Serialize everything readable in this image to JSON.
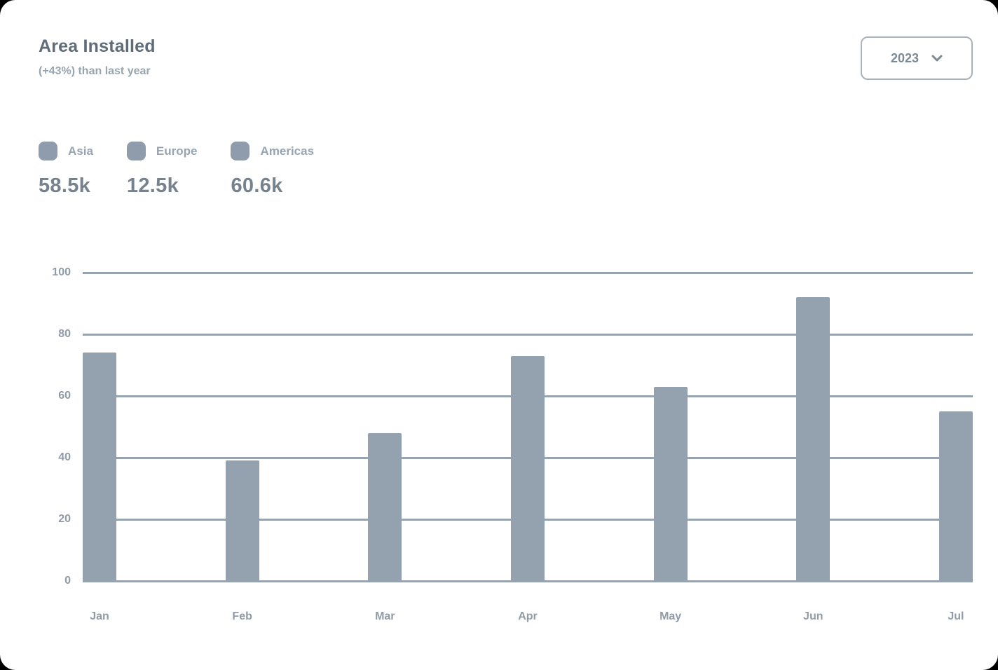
{
  "card": {
    "title": "Area Installed",
    "subtitle": "(+43%) than last year",
    "year_selector": {
      "value": "2023",
      "icon": "chevron-down-icon"
    }
  },
  "legend": {
    "items": [
      {
        "label": "Asia",
        "value": "58.5k",
        "swatch_color": "#8e9cab"
      },
      {
        "label": "Europe",
        "value": "12.5k",
        "swatch_color": "#8e9cab"
      },
      {
        "label": "Americas",
        "value": "60.6k",
        "swatch_color": "#8e9cab"
      }
    ]
  },
  "chart_data": {
    "type": "bar",
    "title": "Area Installed",
    "categories": [
      "Jan",
      "Feb",
      "Mar",
      "Apr",
      "May",
      "Jun",
      "Jul"
    ],
    "values": [
      74,
      39,
      48,
      73,
      63,
      92,
      55
    ],
    "xlabel": "",
    "ylabel": "",
    "ylim": [
      0,
      100
    ],
    "yticks": [
      0,
      20,
      40,
      60,
      80,
      100
    ],
    "grid": "horizontal",
    "legend_position": "top-left",
    "bar_color": "#94a2b0",
    "gridline_color": "#97a3af"
  },
  "colors": {
    "card_background": "#ffffff",
    "title_text": "#5f6c7a",
    "muted_text": "#98a4b0",
    "value_text": "#76838f",
    "axis_text": "#8f9ba7",
    "button_border": "#a9b1ba"
  }
}
